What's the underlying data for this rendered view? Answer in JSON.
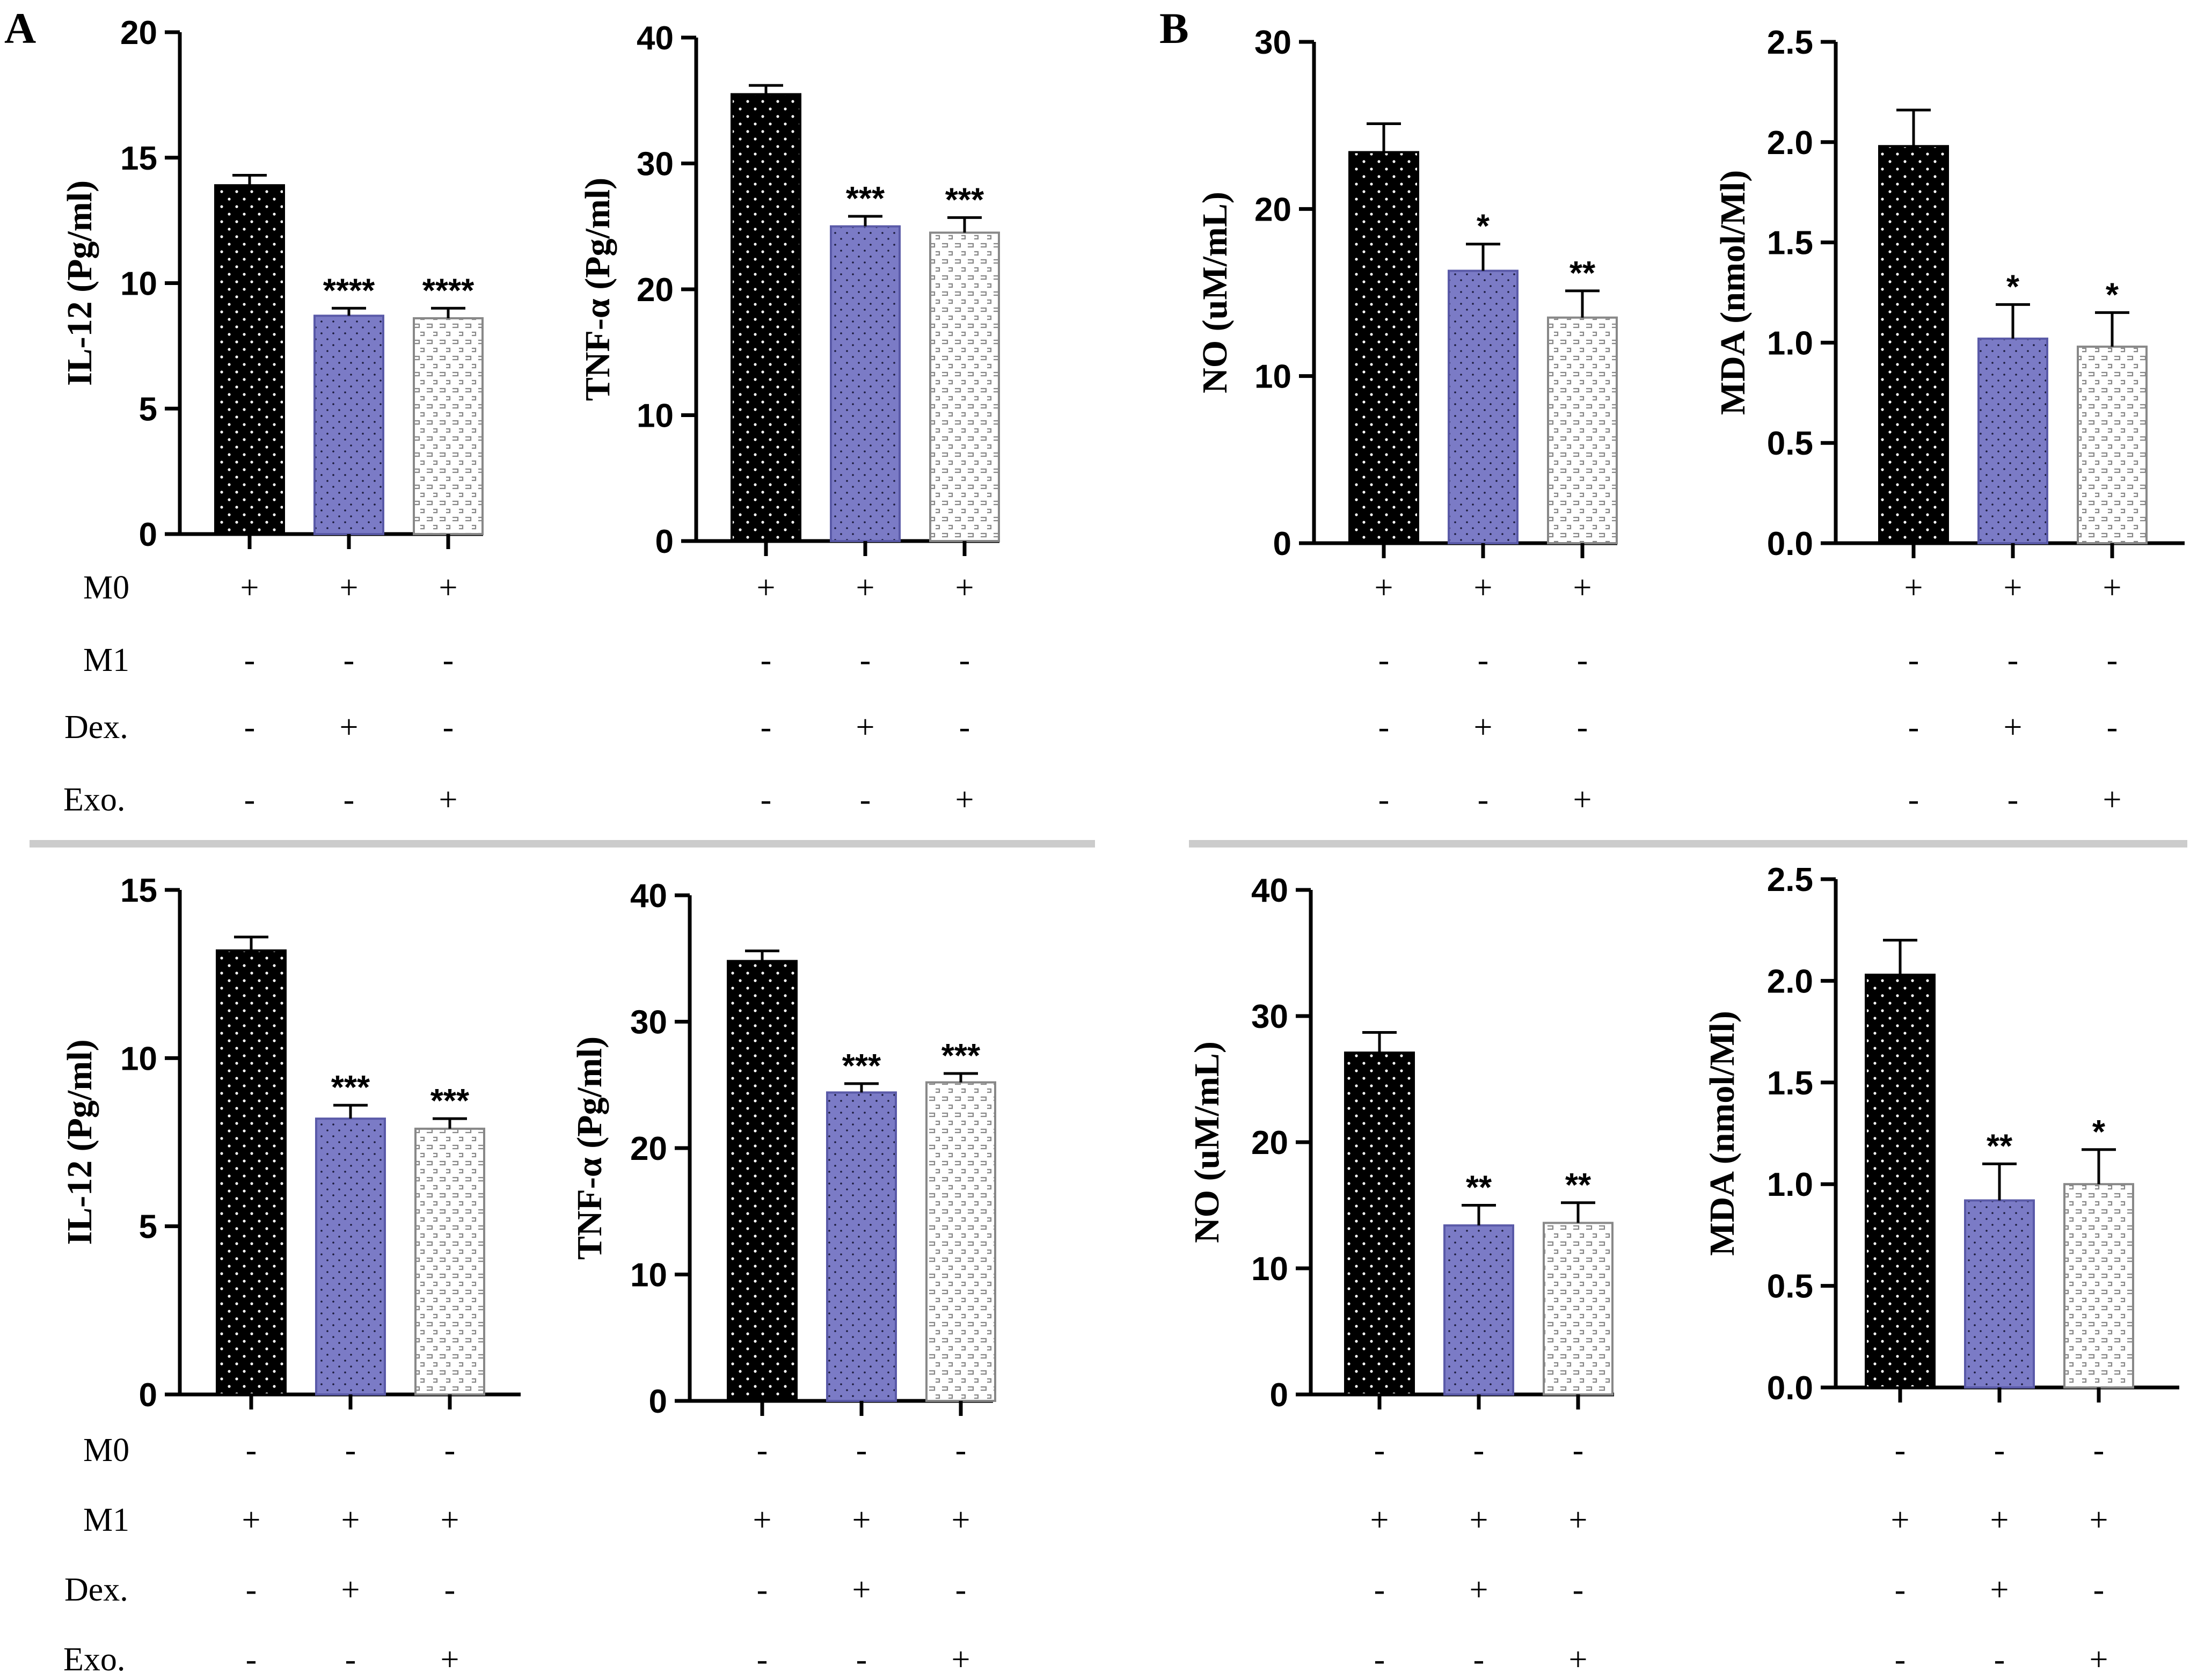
{
  "panel_labels": [
    "A",
    "B"
  ],
  "colors": {
    "control": "#000000",
    "dex": "#7b7bc6",
    "exo": "#ffffff",
    "axis": "#000000",
    "separator": "#cccccc"
  },
  "condition_rows": {
    "labels": [
      "M0",
      "M1",
      "Dex.",
      "Exo."
    ],
    "top": [
      [
        "+",
        "+",
        "+"
      ],
      [
        "-",
        "-",
        "-"
      ],
      [
        "-",
        "+",
        "-"
      ],
      [
        "-",
        "-",
        "+"
      ]
    ],
    "bottom": [
      [
        "-",
        "-",
        "-"
      ],
      [
        "+",
        "+",
        "+"
      ],
      [
        "-",
        "+",
        "-"
      ],
      [
        "-",
        "-",
        "+"
      ]
    ]
  },
  "chart_data": [
    {
      "id": "A-top-IL12",
      "type": "bar",
      "group": "M0",
      "panel": "A",
      "ylabel": "IL-12 (Pg/ml)",
      "ylim": [
        0,
        20
      ],
      "yticks": [
        0,
        5,
        10,
        15,
        20
      ],
      "values": [
        13.9,
        8.7,
        8.6
      ],
      "errors": [
        0.4,
        0.3,
        0.4
      ],
      "significance": [
        "",
        "****",
        "****"
      ]
    },
    {
      "id": "A-top-TNF",
      "type": "bar",
      "group": "M0",
      "panel": "A",
      "ylabel": "TNF-α (Pg/ml)",
      "ylim": [
        0,
        40
      ],
      "yticks": [
        0,
        10,
        20,
        30,
        40
      ],
      "values": [
        35.5,
        25.0,
        24.5
      ],
      "errors": [
        0.7,
        0.8,
        1.2
      ],
      "significance": [
        "",
        "***",
        "***"
      ]
    },
    {
      "id": "B-top-NO",
      "type": "bar",
      "group": "M0",
      "panel": "B",
      "ylabel": "NO (uM/mL)",
      "ylim": [
        0,
        30
      ],
      "yticks": [
        0,
        10,
        20,
        30
      ],
      "values": [
        23.4,
        16.3,
        13.5
      ],
      "errors": [
        1.7,
        1.6,
        1.6
      ],
      "significance": [
        "",
        "*",
        "**"
      ]
    },
    {
      "id": "B-top-MDA",
      "type": "bar",
      "group": "M0",
      "panel": "B",
      "ylabel": "MDA (nmol/Ml)",
      "ylim": [
        0,
        2.5
      ],
      "yticks": [
        "0.0",
        "0.5",
        "1.0",
        "1.5",
        "2.0",
        "2.5"
      ],
      "values": [
        1.98,
        1.02,
        0.98
      ],
      "errors": [
        0.18,
        0.17,
        0.17
      ],
      "significance": [
        "",
        "*",
        "*"
      ]
    },
    {
      "id": "A-bottom-IL12",
      "type": "bar",
      "group": "M1",
      "panel": "A",
      "ylabel": "IL-12 (Pg/ml)",
      "ylim": [
        0,
        15
      ],
      "yticks": [
        0,
        5,
        10,
        15
      ],
      "values": [
        13.2,
        8.2,
        7.9
      ],
      "errors": [
        0.4,
        0.4,
        0.3
      ],
      "significance": [
        "",
        "***",
        "***"
      ]
    },
    {
      "id": "A-bottom-TNF",
      "type": "bar",
      "group": "M1",
      "panel": "A",
      "ylabel": "TNF-α (Pg/ml)",
      "ylim": [
        0,
        40
      ],
      "yticks": [
        0,
        10,
        20,
        30,
        40
      ],
      "values": [
        34.8,
        24.4,
        25.2
      ],
      "errors": [
        0.8,
        0.7,
        0.7
      ],
      "significance": [
        "",
        "***",
        "***"
      ]
    },
    {
      "id": "B-bottom-NO",
      "type": "bar",
      "group": "M1",
      "panel": "B",
      "ylabel": "NO (uM/mL)",
      "ylim": [
        0,
        40
      ],
      "yticks": [
        0,
        10,
        20,
        30,
        40
      ],
      "values": [
        27.1,
        13.4,
        13.6
      ],
      "errors": [
        1.6,
        1.6,
        1.6
      ],
      "significance": [
        "",
        "**",
        "**"
      ]
    },
    {
      "id": "B-bottom-MDA",
      "type": "bar",
      "group": "M1",
      "panel": "B",
      "ylabel": "MDA (nmol/Ml)",
      "ylim": [
        0,
        2.5
      ],
      "yticks": [
        "0.0",
        "0.5",
        "1.0",
        "1.5",
        "2.0",
        "2.5"
      ],
      "values": [
        2.03,
        0.92,
        1.0
      ],
      "errors": [
        0.17,
        0.18,
        0.17
      ],
      "significance": [
        "",
        "**",
        "*"
      ]
    }
  ]
}
